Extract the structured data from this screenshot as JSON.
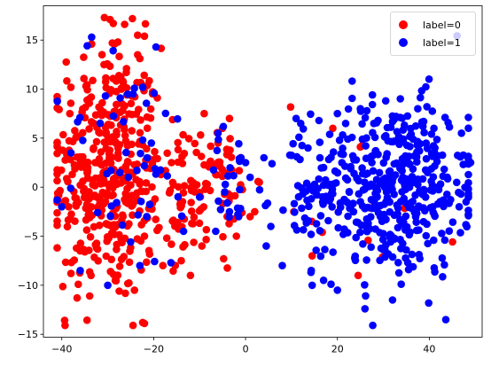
{
  "chart_data": {
    "type": "scatter",
    "title": "",
    "xlabel": "",
    "ylabel": "",
    "xlim": [
      -44,
      51.5
    ],
    "ylim": [
      -15.3,
      18.5
    ],
    "xticks": [
      -40,
      -20,
      0,
      20,
      40
    ],
    "yticks": [
      -15,
      -10,
      -5,
      0,
      5,
      10,
      15
    ],
    "grid": false,
    "legend_position": "top-right",
    "series": [
      {
        "name": "label=0",
        "color": "#ff0000",
        "clusters": [
          {
            "cx": -30,
            "cy": 1.5,
            "sx": 6,
            "sy": 6.5,
            "n": 420
          },
          {
            "cx": -12,
            "cy": -1,
            "sx": 4,
            "sy": 3,
            "n": 70
          },
          {
            "cx": -4,
            "cy": 0,
            "sx": 3.5,
            "sy": 3,
            "n": 35
          },
          {
            "cx": 28,
            "cy": 0,
            "sx": 10,
            "sy": 5,
            "n": 8
          }
        ],
        "points": [
          [
            -29.5,
            17.1
          ],
          [
            -28.8,
            16.7
          ],
          [
            -22.4,
            -13.8
          ],
          [
            -22.0,
            -13.9
          ],
          [
            -23.5,
            15.5
          ],
          [
            -22.0,
            15.4
          ],
          [
            -33.5,
            14.6
          ],
          [
            -29.0,
            14.7
          ],
          [
            -27.8,
            14.8
          ],
          [
            -23.5,
            13.5
          ],
          [
            -38.5,
            -2.0
          ],
          [
            -38.0,
            -8.8
          ],
          [
            -14.0,
            -7.5
          ],
          [
            -18.0,
            -8.0
          ],
          [
            -12.0,
            -9.0
          ],
          [
            -9.5,
            -6.0
          ],
          [
            -9.0,
            7.5
          ],
          [
            -6.0,
            4.5
          ],
          [
            -4.0,
            -3.0
          ],
          [
            -2.0,
            -5.0
          ],
          [
            1.0,
            -3.0
          ],
          [
            2.0,
            -2.5
          ],
          [
            3.0,
            0.5
          ],
          [
            -3.5,
            7.0
          ],
          [
            -5.0,
            6.0
          ],
          [
            25.0,
            4.1
          ],
          [
            25.5,
            4.3
          ],
          [
            24.5,
            -9.0
          ],
          [
            16.7,
            -4.6
          ],
          [
            19.0,
            6.0
          ],
          [
            10.5,
            -2.5
          ],
          [
            14.5,
            -7.0
          ],
          [
            -27.5,
            -10.6
          ],
          [
            -36.0,
            -6.5
          ],
          [
            -34.0,
            9.0
          ]
        ]
      },
      {
        "name": "label=1",
        "color": "#0000ff",
        "clusters": [
          {
            "cx": 32,
            "cy": 0,
            "sx": 8.5,
            "sy": 4.5,
            "n": 430
          },
          {
            "cx": 14,
            "cy": -1,
            "sx": 3.5,
            "sy": 3,
            "n": 45
          },
          {
            "cx": -25,
            "cy": 2,
            "sx": 8,
            "sy": 6,
            "n": 45
          },
          {
            "cx": -3,
            "cy": 1,
            "sx": 3,
            "sy": 2.5,
            "n": 20
          }
        ],
        "points": [
          [
            -33.5,
            15.3
          ],
          [
            -19.5,
            14.3
          ],
          [
            -40.0,
            -2.0
          ],
          [
            -38.0,
            3.5
          ],
          [
            -30.5,
            9.3
          ],
          [
            -24.5,
            9.5
          ],
          [
            -20.5,
            4.5
          ],
          [
            -25.5,
            1.0
          ],
          [
            -10.0,
            -1.0
          ],
          [
            -6.0,
            5.5
          ],
          [
            -1.0,
            3.0
          ],
          [
            0.0,
            2.5
          ],
          [
            1.0,
            1.0
          ],
          [
            -1.5,
            -3.0
          ],
          [
            -3.5,
            -2.5
          ],
          [
            -6.5,
            -4.5
          ],
          [
            4.0,
            3.0
          ],
          [
            11.0,
            7.0
          ],
          [
            12.0,
            6.5
          ],
          [
            20.0,
            7.5
          ],
          [
            25.0,
            8.0
          ],
          [
            30.5,
            8.8
          ],
          [
            37.5,
            8.0
          ],
          [
            41.0,
            6.0
          ],
          [
            47.0,
            5.5
          ],
          [
            49.0,
            2.5
          ],
          [
            48.0,
            -1.5
          ],
          [
            46.5,
            -2.0
          ],
          [
            26.0,
            -12.4
          ],
          [
            32.0,
            -11.5
          ],
          [
            20.0,
            -10.5
          ],
          [
            14.5,
            -10.0
          ],
          [
            8.0,
            -8.0
          ],
          [
            4.5,
            -6.0
          ],
          [
            5.5,
            -4.0
          ],
          [
            -23.0,
            -8.0
          ],
          [
            -30.0,
            -10.0
          ],
          [
            -36.0,
            -8.5
          ],
          [
            -21.5,
            -3.0
          ],
          [
            -13.5,
            -4.5
          ]
        ]
      }
    ]
  }
}
